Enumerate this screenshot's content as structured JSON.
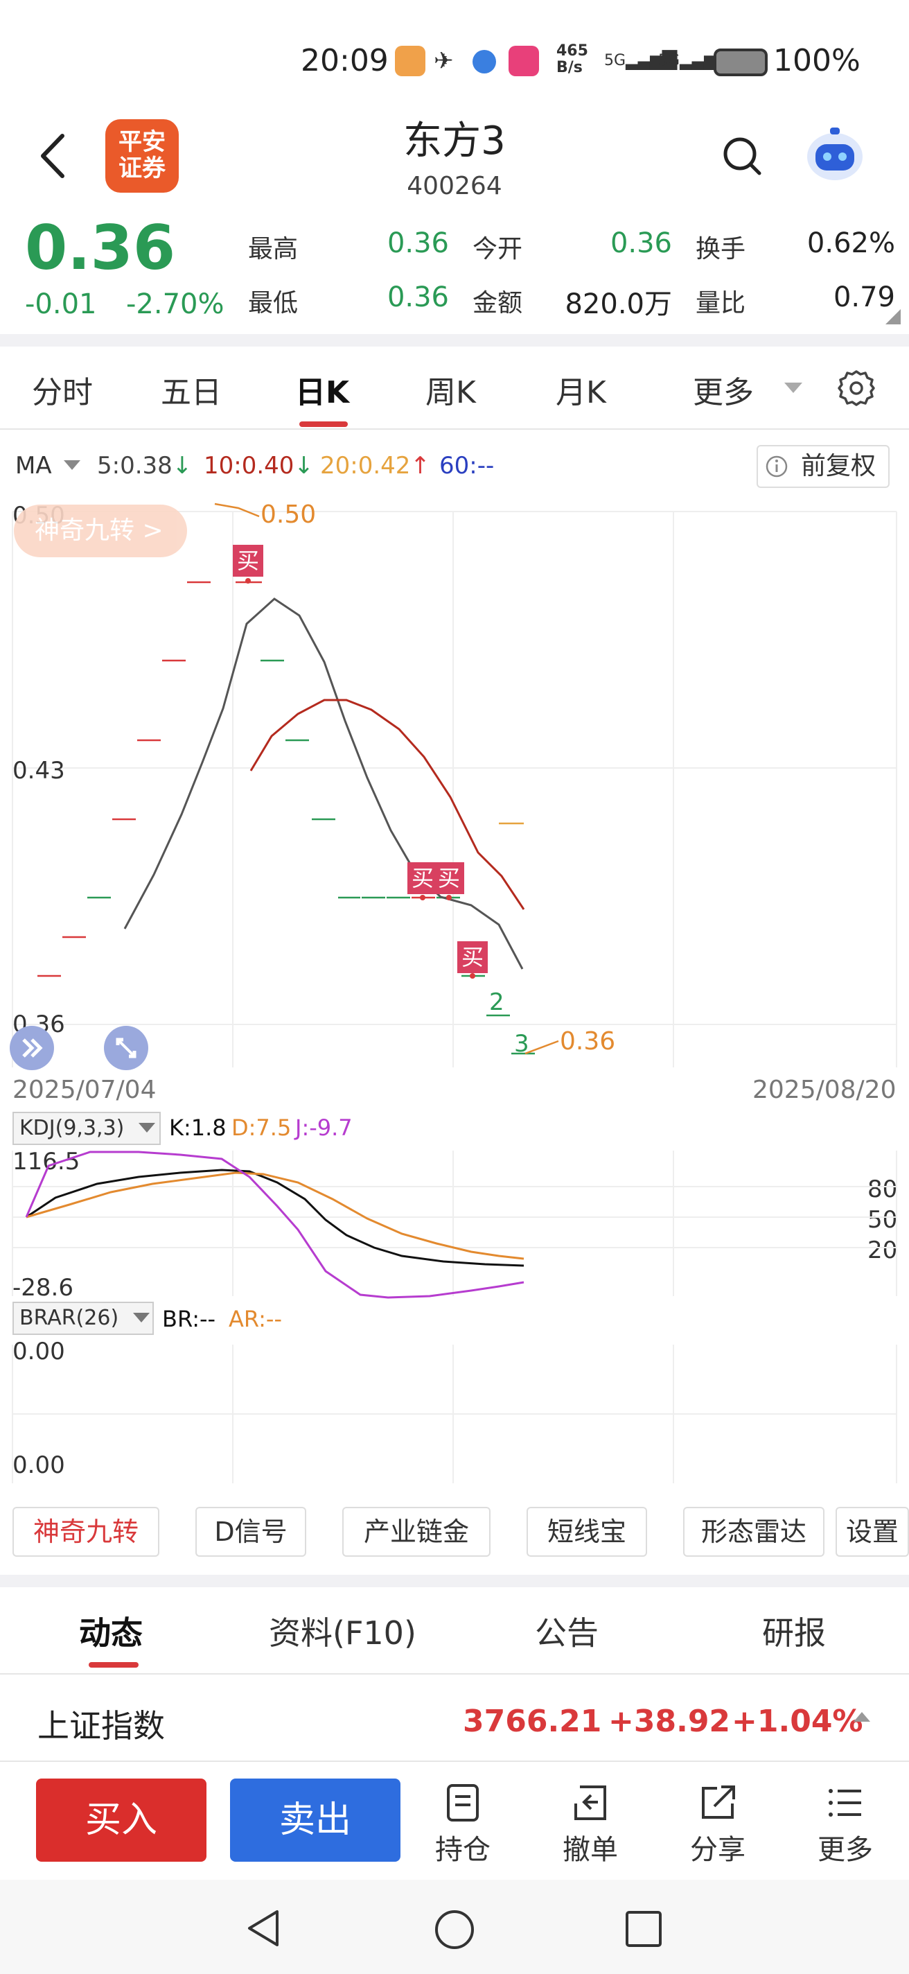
{
  "status_bar": {
    "time": "20:09",
    "net_speed_top": "465",
    "net_speed_bottom": "B/s",
    "signal1": "5G",
    "signal2": "5G",
    "battery": "100%"
  },
  "header": {
    "logo_text_line1": "平安",
    "logo_text_line2": "证券",
    "stock_name": "东方3",
    "stock_code": "400264"
  },
  "quote": {
    "price": "0.36",
    "change": "-0.01",
    "change_pct": "-2.70%",
    "high_label": "最高",
    "high": "0.36",
    "open_label": "今开",
    "open": "0.36",
    "turnover_label": "换手",
    "turnover": "0.62%",
    "low_label": "最低",
    "low": "0.36",
    "amount_label": "金额",
    "amount": "820.0万",
    "volume_ratio_label": "量比",
    "volume_ratio": "0.79"
  },
  "chart_tabs": [
    "分时",
    "五日",
    "日K",
    "周K",
    "月K",
    "更多"
  ],
  "ma": {
    "label": "MA",
    "ma5": "5:0.38",
    "ma10": "10:0.40",
    "ma20": "20:0.42",
    "ma60": "60:--",
    "fuquan": "前复权"
  },
  "kchart": {
    "y_top": "0.50",
    "y_mid": "0.43",
    "y_bottom": "0.36",
    "max_label": "0.50",
    "min_label": "0.36",
    "jiuzhuan_label": "神奇九转 >",
    "buy_tag": "买",
    "count2": "2",
    "count3": "3",
    "date_start": "2025/07/04",
    "date_end": "2025/08/20"
  },
  "kdj": {
    "label": "KDJ(9,3,3)",
    "k": "K:1.8",
    "d": "D:7.5",
    "j": "J:-9.7",
    "y_top": "116.5",
    "y_bottom": "-28.6",
    "lvl80": "80",
    "lvl50": "50",
    "lvl20": "20"
  },
  "brar": {
    "label": "BRAR(26)",
    "br": "BR:--",
    "ar": "AR:--",
    "y_top": "0.00",
    "y_bottom": "0.00"
  },
  "tools": [
    "神奇九转",
    "D信号",
    "产业链金",
    "短线宝",
    "形态雷达",
    "设置"
  ],
  "content_tabs": [
    "动态",
    "资料(F10)",
    "公告",
    "研报"
  ],
  "index_ticker": {
    "name": "上证指数",
    "value": "3766.21",
    "change": "+38.92",
    "change_pct": "+1.04%"
  },
  "bottom_bar": {
    "buy": "买入",
    "sell": "卖出",
    "position": "持仓",
    "cancel": "撤单",
    "share": "分享",
    "more": "更多"
  },
  "colors": {
    "up": "#d9393b",
    "down": "#2a9a55",
    "ma5": "#555555",
    "ma10": "#b42a1e",
    "ma20": "#e6a33e",
    "ma60": "#2a3fc0",
    "kdj_k": "#111111",
    "kdj_d": "#e38a2f",
    "kdj_j": "#b63ccf"
  }
}
